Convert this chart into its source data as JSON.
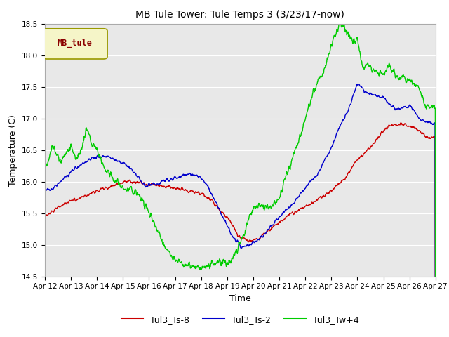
{
  "title": "MB Tule Tower: Tule Temps 3 (3/23/17-now)",
  "xlabel": "Time",
  "ylabel": "Temperature (C)",
  "ylim": [
    14.5,
    18.5
  ],
  "xlim": [
    0,
    15
  ],
  "bg_color": "#e8e8e8",
  "legend_box_color": "#f5f5c8",
  "legend_box_edge": "#b8b800",
  "legend_label": "MB_tule",
  "legend_label_color": "#8b0000",
  "series": {
    "Tul3_Ts-8": {
      "color": "#cc0000"
    },
    "Tul3_Ts-2": {
      "color": "#0000cc"
    },
    "Tul3_Tw+4": {
      "color": "#00cc00"
    }
  },
  "xtick_labels": [
    "Apr 12",
    "Apr 13",
    "Apr 14",
    "Apr 15",
    "Apr 16",
    "Apr 17",
    "Apr 18",
    "Apr 19",
    "Apr 20",
    "Apr 21",
    "Apr 22",
    "Apr 23",
    "Apr 24",
    "Apr 25",
    "Apr 26",
    "Apr 27"
  ],
  "ytick_labels": [
    "14.5",
    "15.0",
    "15.5",
    "16.0",
    "16.5",
    "17.0",
    "17.5",
    "18.0",
    "18.5"
  ],
  "ytick_positions": [
    14.5,
    15.0,
    15.5,
    16.0,
    16.5,
    17.0,
    17.5,
    18.0,
    18.5
  ],
  "red_pts_x": [
    0,
    0.3,
    0.5,
    0.8,
    1.0,
    1.3,
    1.6,
    2.0,
    2.5,
    3.0,
    3.3,
    3.5,
    3.7,
    4.0,
    4.3,
    4.6,
    5.0,
    5.3,
    5.6,
    6.0,
    6.2,
    6.4,
    6.5,
    6.7,
    7.0,
    7.2,
    7.4,
    7.6,
    7.8,
    8.0,
    8.2,
    8.5,
    9.0,
    9.5,
    10.0,
    10.5,
    11.0,
    11.5,
    12.0,
    12.5,
    13.0,
    13.2,
    13.5,
    13.7,
    14.0,
    14.3,
    14.5,
    14.7,
    15.0
  ],
  "red_pts_y": [
    15.45,
    15.52,
    15.6,
    15.65,
    15.7,
    15.72,
    15.78,
    15.85,
    15.92,
    16.0,
    16.0,
    15.98,
    15.98,
    15.95,
    15.95,
    15.92,
    15.9,
    15.88,
    15.85,
    15.8,
    15.75,
    15.7,
    15.65,
    15.55,
    15.45,
    15.3,
    15.15,
    15.1,
    15.05,
    15.07,
    15.1,
    15.2,
    15.35,
    15.5,
    15.6,
    15.72,
    15.85,
    16.05,
    16.35,
    16.55,
    16.8,
    16.87,
    16.9,
    16.92,
    16.88,
    16.82,
    16.75,
    16.7,
    16.68
  ],
  "blue_pts_x": [
    0,
    0.3,
    0.6,
    0.9,
    1.2,
    1.5,
    2.0,
    2.3,
    2.5,
    2.7,
    3.0,
    3.2,
    3.3,
    3.4,
    3.6,
    3.8,
    4.0,
    4.3,
    4.5,
    5.0,
    5.3,
    5.5,
    5.8,
    6.0,
    6.2,
    6.4,
    6.6,
    6.8,
    7.0,
    7.2,
    7.4,
    7.5,
    7.7,
    7.9,
    8.1,
    8.3,
    8.6,
    9.0,
    9.5,
    10.0,
    10.5,
    11.0,
    11.3,
    11.6,
    12.0,
    12.3,
    12.6,
    13.0,
    13.3,
    13.5,
    13.7,
    14.0,
    14.5,
    15.0
  ],
  "blue_pts_y": [
    15.85,
    15.9,
    16.0,
    16.12,
    16.22,
    16.3,
    16.38,
    16.4,
    16.38,
    16.35,
    16.3,
    16.25,
    16.2,
    16.15,
    16.05,
    15.95,
    15.95,
    15.97,
    16.0,
    16.05,
    16.1,
    16.12,
    16.1,
    16.05,
    15.95,
    15.8,
    15.65,
    15.45,
    15.3,
    15.12,
    15.05,
    14.97,
    14.97,
    15.0,
    15.05,
    15.12,
    15.25,
    15.45,
    15.65,
    15.9,
    16.15,
    16.55,
    16.85,
    17.1,
    17.55,
    17.42,
    17.38,
    17.32,
    17.2,
    17.15,
    17.18,
    17.2,
    16.95,
    16.9
  ],
  "green_pts_x": [
    0,
    0.15,
    0.3,
    0.5,
    0.6,
    0.8,
    1.0,
    1.2,
    1.4,
    1.6,
    1.8,
    2.0,
    2.3,
    2.5,
    2.8,
    3.0,
    3.2,
    3.4,
    3.6,
    3.8,
    4.0,
    4.3,
    4.6,
    5.0,
    5.3,
    5.5,
    5.8,
    6.0,
    6.2,
    6.4,
    6.6,
    6.8,
    7.0,
    7.15,
    7.2,
    7.3,
    7.5,
    7.7,
    7.9,
    8.1,
    8.3,
    8.6,
    8.8,
    9.0,
    9.2,
    9.4,
    9.6,
    9.8,
    10.0,
    10.3,
    10.5,
    10.7,
    11.0,
    11.2,
    11.4,
    11.5,
    11.7,
    12.0,
    12.2,
    12.4,
    12.6,
    12.8,
    13.0,
    13.2,
    13.5,
    13.8,
    14.0,
    14.3,
    14.6,
    14.8,
    15.0
  ],
  "green_pts_y": [
    16.2,
    16.38,
    16.55,
    16.38,
    16.3,
    16.45,
    16.55,
    16.35,
    16.5,
    16.85,
    16.6,
    16.5,
    16.2,
    16.1,
    15.97,
    15.92,
    15.88,
    15.85,
    15.8,
    15.65,
    15.5,
    15.25,
    14.95,
    14.75,
    14.7,
    14.68,
    14.65,
    14.63,
    14.65,
    14.68,
    14.7,
    14.72,
    14.72,
    14.75,
    14.78,
    14.85,
    15.05,
    15.25,
    15.5,
    15.62,
    15.62,
    15.58,
    15.65,
    15.75,
    16.0,
    16.25,
    16.5,
    16.72,
    17.0,
    17.4,
    17.62,
    17.72,
    18.15,
    18.4,
    18.5,
    18.42,
    18.28,
    18.22,
    17.8,
    17.85,
    17.78,
    17.72,
    17.7,
    17.85,
    17.65,
    17.65,
    17.6,
    17.5,
    17.2,
    17.18,
    17.2
  ]
}
